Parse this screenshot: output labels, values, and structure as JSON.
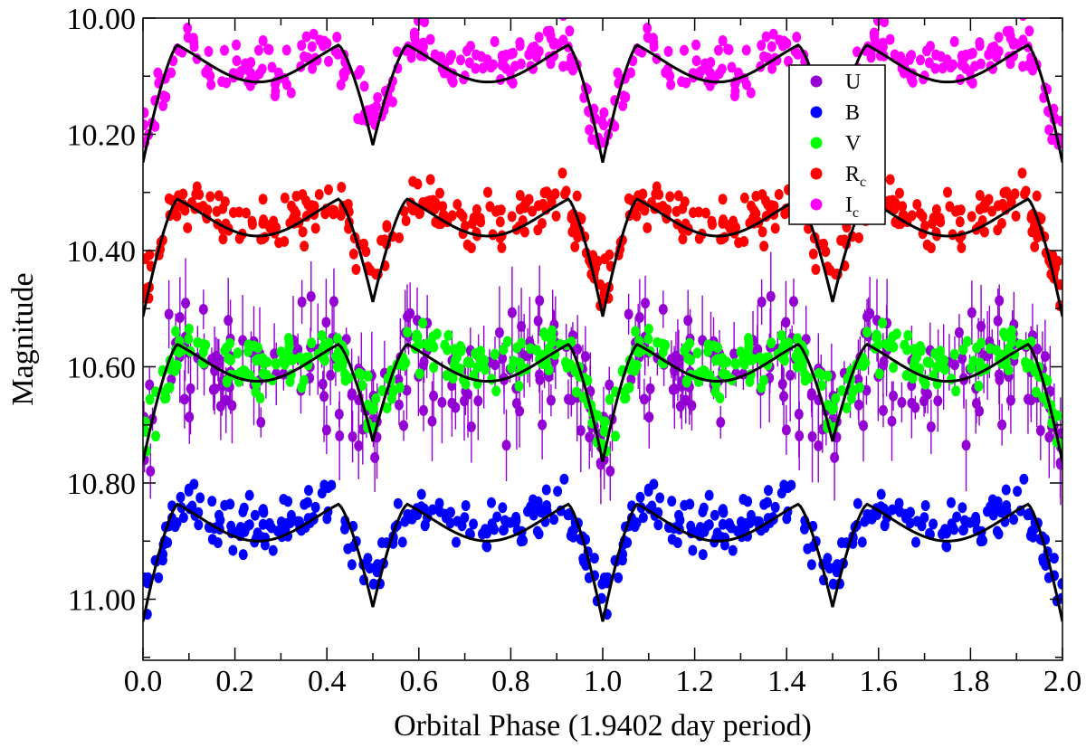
{
  "chart_data": {
    "type": "scatter",
    "xlabel": "Orbital Phase  (1.9402 day period)",
    "ylabel": "Magnitude",
    "xlim": [
      0.0,
      2.0
    ],
    "ylim": [
      10.0,
      11.1
    ],
    "y_inverted": true,
    "x_ticks": [
      "0.0",
      "0.2",
      "0.4",
      "0.6",
      "0.8",
      "1.0",
      "1.2",
      "1.4",
      "1.6",
      "1.8",
      "2.0"
    ],
    "x_tick_values": [
      0.0,
      0.2,
      0.4,
      0.6,
      0.8,
      1.0,
      1.2,
      1.4,
      1.6,
      1.8,
      2.0
    ],
    "y_ticks": [
      "10.00",
      "10.20",
      "10.40",
      "10.60",
      "10.80",
      "11.00"
    ],
    "y_tick_values": [
      10.0,
      10.2,
      10.4,
      10.6,
      10.8,
      11.0
    ],
    "grid": false,
    "legend_position": "top-right",
    "legend": [
      {
        "label": "U",
        "sub": "",
        "color": "#9400d3"
      },
      {
        "label": "B",
        "sub": "",
        "color": "#0000ff"
      },
      {
        "label": "V",
        "sub": "",
        "color": "#00ff00"
      },
      {
        "label": "R",
        "sub": "c",
        "color": "#ff0000"
      },
      {
        "label": "I",
        "sub": "c",
        "color": "#ff00ff"
      }
    ],
    "series": [
      {
        "name": "I_c",
        "color": "#ff00ff",
        "max_mag": 10.03,
        "prim_depth": 0.235,
        "sec_depth": 0.205,
        "scatter": 0.022,
        "point_count": 230,
        "error_bar": false
      },
      {
        "name": "R_c",
        "color": "#ff0000",
        "max_mag": 10.295,
        "prim_depth": 0.235,
        "sec_depth": 0.21,
        "scatter": 0.022,
        "point_count": 230,
        "error_bar": false
      },
      {
        "name": "U",
        "color": "#9400d3",
        "max_mag": 10.55,
        "prim_depth": 0.24,
        "sec_depth": 0.2,
        "scatter": 0.055,
        "point_count": 170,
        "error_bar": true
      },
      {
        "name": "V",
        "color": "#00ff00",
        "max_mag": 10.545,
        "prim_depth": 0.235,
        "sec_depth": 0.2,
        "scatter": 0.022,
        "point_count": 230,
        "error_bar": false
      },
      {
        "name": "B",
        "color": "#0000ff",
        "max_mag": 10.82,
        "prim_depth": 0.235,
        "sec_depth": 0.21,
        "scatter": 0.022,
        "point_count": 230,
        "error_bar": false
      }
    ],
    "model_curves": [
      {
        "max_mag": 10.03,
        "prim_mag": 10.265,
        "sec_mag": 10.235,
        "color": "#000000"
      },
      {
        "max_mag": 10.295,
        "prim_mag": 10.53,
        "sec_mag": 10.505,
        "color": "#000000"
      },
      {
        "max_mag": 10.545,
        "prim_mag": 10.78,
        "sec_mag": 10.745,
        "color": "#000000"
      },
      {
        "max_mag": 10.82,
        "prim_mag": 11.055,
        "sec_mag": 11.03,
        "color": "#000000"
      }
    ]
  }
}
